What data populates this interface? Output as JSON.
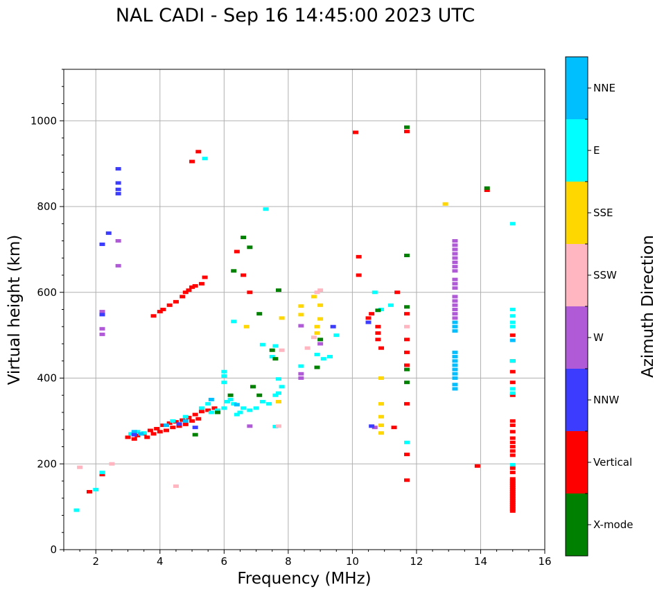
{
  "chart_data": {
    "type": "scatter",
    "title": "NAL CADI - Sep 16 14:45:00 2023 UTC",
    "xlabel": "Frequency (MHz)",
    "ylabel": "Virtual height (km)",
    "xlim": [
      1,
      16
    ],
    "ylim": [
      0,
      1120
    ],
    "xticks": [
      2,
      4,
      6,
      8,
      10,
      12,
      14,
      16
    ],
    "xtick_labels": [
      "2",
      "4",
      "6",
      "8",
      "10",
      "12",
      "14",
      "16"
    ],
    "yticks": [
      0,
      200,
      400,
      600,
      800,
      1000
    ],
    "ytick_labels": [
      "0",
      "200",
      "400",
      "600",
      "800",
      "1000"
    ],
    "grid": true,
    "colorbar": {
      "label": "Azimuth Direction",
      "categories": [
        {
          "name": "X-mode",
          "color": "#008000"
        },
        {
          "name": "Vertical",
          "color": "#ff0000"
        },
        {
          "name": "NNW",
          "color": "#3c3cff"
        },
        {
          "name": "W",
          "color": "#b05ad8"
        },
        {
          "name": "SSW",
          "color": "#ffb6c1"
        },
        {
          "name": "SSE",
          "color": "#ffd700"
        },
        {
          "name": "E",
          "color": "#00ffff"
        },
        {
          "name": "NNE",
          "color": "#00bfff"
        }
      ]
    },
    "series": [
      {
        "name": "Vertical",
        "points": [
          [
            3.0,
            262
          ],
          [
            3.2,
            258
          ],
          [
            3.3,
            266
          ],
          [
            3.5,
            270
          ],
          [
            3.6,
            262
          ],
          [
            3.7,
            278
          ],
          [
            3.8,
            270
          ],
          [
            3.9,
            282
          ],
          [
            4.0,
            275
          ],
          [
            4.1,
            290
          ],
          [
            4.2,
            278
          ],
          [
            4.3,
            295
          ],
          [
            4.4,
            285
          ],
          [
            4.5,
            298
          ],
          [
            4.6,
            288
          ],
          [
            4.7,
            302
          ],
          [
            4.8,
            292
          ],
          [
            4.9,
            308
          ],
          [
            5.0,
            300
          ],
          [
            5.1,
            315
          ],
          [
            5.2,
            305
          ],
          [
            5.3,
            322
          ],
          [
            5.5,
            325
          ],
          [
            5.7,
            330
          ],
          [
            3.8,
            545
          ],
          [
            4.0,
            555
          ],
          [
            4.1,
            560
          ],
          [
            4.3,
            570
          ],
          [
            4.5,
            578
          ],
          [
            4.7,
            590
          ],
          [
            4.8,
            600
          ],
          [
            4.9,
            605
          ],
          [
            5.0,
            612
          ],
          [
            5.1,
            615
          ],
          [
            5.3,
            620
          ],
          [
            5.4,
            635
          ],
          [
            6.4,
            695
          ],
          [
            6.6,
            640
          ],
          [
            6.8,
            600
          ],
          [
            2.2,
            175
          ],
          [
            1.8,
            135
          ],
          [
            10.1,
            973
          ],
          [
            10.2,
            640
          ],
          [
            10.2,
            683
          ],
          [
            10.5,
            540
          ],
          [
            10.6,
            550
          ],
          [
            10.8,
            520
          ],
          [
            10.8,
            505
          ],
          [
            10.8,
            490
          ],
          [
            10.9,
            470
          ],
          [
            11.4,
            600
          ],
          [
            11.3,
            285
          ],
          [
            11.7,
            975
          ],
          [
            11.7,
            550
          ],
          [
            11.7,
            490
          ],
          [
            11.7,
            460
          ],
          [
            11.7,
            430
          ],
          [
            11.7,
            340
          ],
          [
            11.7,
            222
          ],
          [
            11.7,
            162
          ],
          [
            13.9,
            195
          ],
          [
            14.2,
            838
          ],
          [
            15.0,
            500
          ],
          [
            15.0,
            440
          ],
          [
            15.0,
            415
          ],
          [
            15.0,
            390
          ],
          [
            15.0,
            360
          ],
          [
            15.0,
            300
          ],
          [
            15.0,
            290
          ],
          [
            15.0,
            275
          ],
          [
            15.0,
            260
          ],
          [
            15.0,
            250
          ],
          [
            15.0,
            240
          ],
          [
            15.0,
            230
          ],
          [
            15.0,
            220
          ],
          [
            15.0,
            190
          ],
          [
            15.0,
            180
          ],
          [
            15.0,
            165
          ],
          [
            15.0,
            160
          ],
          [
            15.0,
            155
          ],
          [
            15.0,
            150
          ],
          [
            15.0,
            145
          ],
          [
            15.0,
            140
          ],
          [
            15.0,
            135
          ],
          [
            15.0,
            130
          ],
          [
            15.0,
            125
          ],
          [
            15.0,
            120
          ],
          [
            15.0,
            115
          ],
          [
            15.0,
            110
          ],
          [
            15.0,
            105
          ],
          [
            15.0,
            100
          ],
          [
            15.0,
            95
          ],
          [
            15.0,
            90
          ],
          [
            5.0,
            905
          ],
          [
            5.2,
            928
          ]
        ]
      },
      {
        "name": "E",
        "points": [
          [
            1.4,
            92
          ],
          [
            2.0,
            140
          ],
          [
            2.2,
            180
          ],
          [
            3.1,
            270
          ],
          [
            3.3,
            275
          ],
          [
            3.5,
            272
          ],
          [
            4.4,
            300
          ],
          [
            4.8,
            310
          ],
          [
            5.3,
            330
          ],
          [
            5.5,
            340
          ],
          [
            5.6,
            320
          ],
          [
            5.8,
            325
          ],
          [
            6.0,
            330
          ],
          [
            6.1,
            345
          ],
          [
            6.2,
            350
          ],
          [
            6.3,
            340
          ],
          [
            6.4,
            315
          ],
          [
            6.5,
            320
          ],
          [
            6.6,
            330
          ],
          [
            6.8,
            325
          ],
          [
            7.0,
            330
          ],
          [
            7.2,
            345
          ],
          [
            7.4,
            340
          ],
          [
            7.6,
            360
          ],
          [
            7.7,
            365
          ],
          [
            7.8,
            380
          ],
          [
            6.0,
            390
          ],
          [
            6.0,
            405
          ],
          [
            6.0,
            415
          ],
          [
            6.3,
            532
          ],
          [
            7.2,
            478
          ],
          [
            7.5,
            450
          ],
          [
            7.6,
            475
          ],
          [
            7.7,
            398
          ],
          [
            8.4,
            428
          ],
          [
            8.9,
            455
          ],
          [
            9.1,
            445
          ],
          [
            9.3,
            450
          ],
          [
            9.5,
            500
          ],
          [
            10.7,
            600
          ],
          [
            10.9,
            560
          ],
          [
            11.2,
            570
          ],
          [
            11.7,
            250
          ],
          [
            15.0,
            560
          ],
          [
            15.0,
            545
          ],
          [
            15.0,
            530
          ],
          [
            15.0,
            520
          ],
          [
            15.0,
            440
          ],
          [
            15.0,
            375
          ],
          [
            15.0,
            365
          ],
          [
            15.0,
            198
          ],
          [
            15.0,
            760
          ],
          [
            7.3,
            794
          ],
          [
            5.4,
            912
          ],
          [
            7.6,
            287
          ]
        ]
      },
      {
        "name": "NNE",
        "points": [
          [
            3.2,
            275
          ],
          [
            3.4,
            270
          ],
          [
            4.2,
            290
          ],
          [
            4.8,
            300
          ],
          [
            5.6,
            350
          ],
          [
            6.4,
            338
          ],
          [
            13.2,
            530
          ],
          [
            13.2,
            520
          ],
          [
            13.2,
            510
          ],
          [
            13.2,
            460
          ],
          [
            13.2,
            450
          ],
          [
            13.2,
            440
          ],
          [
            13.2,
            430
          ],
          [
            13.2,
            420
          ],
          [
            13.2,
            410
          ],
          [
            13.2,
            400
          ],
          [
            13.2,
            385
          ],
          [
            13.2,
            375
          ],
          [
            15.0,
            488
          ]
        ]
      },
      {
        "name": "W",
        "points": [
          [
            13.2,
            720
          ],
          [
            13.2,
            710
          ],
          [
            13.2,
            700
          ],
          [
            13.2,
            690
          ],
          [
            13.2,
            680
          ],
          [
            13.2,
            670
          ],
          [
            13.2,
            660
          ],
          [
            13.2,
            650
          ],
          [
            13.2,
            630
          ],
          [
            13.2,
            620
          ],
          [
            13.2,
            610
          ],
          [
            13.2,
            590
          ],
          [
            13.2,
            580
          ],
          [
            13.2,
            570
          ],
          [
            13.2,
            560
          ],
          [
            13.2,
            550
          ],
          [
            13.2,
            540
          ],
          [
            8.4,
            522
          ],
          [
            8.4,
            410
          ],
          [
            8.4,
            400
          ],
          [
            2.2,
            555
          ],
          [
            2.2,
            515
          ],
          [
            2.2,
            502
          ],
          [
            9.0,
            480
          ],
          [
            10.7,
            285
          ],
          [
            6.8,
            288
          ],
          [
            2.7,
            662
          ],
          [
            2.7,
            720
          ]
        ]
      },
      {
        "name": "NNW",
        "points": [
          [
            2.2,
            548
          ],
          [
            2.7,
            888
          ],
          [
            2.7,
            855
          ],
          [
            2.7,
            840
          ],
          [
            2.7,
            830
          ],
          [
            2.4,
            738
          ],
          [
            2.2,
            712
          ],
          [
            10.6,
            288
          ],
          [
            10.5,
            530
          ],
          [
            9.4,
            520
          ],
          [
            5.1,
            285
          ],
          [
            4.6,
            293
          ],
          [
            3.2,
            268
          ]
        ]
      },
      {
        "name": "X-mode",
        "points": [
          [
            6.3,
            650
          ],
          [
            6.6,
            728
          ],
          [
            6.8,
            705
          ],
          [
            7.1,
            550
          ],
          [
            7.7,
            605
          ],
          [
            7.5,
            465
          ],
          [
            7.6,
            445
          ],
          [
            8.9,
            425
          ],
          [
            9.0,
            490
          ],
          [
            10.8,
            558
          ],
          [
            11.7,
            985
          ],
          [
            11.7,
            686
          ],
          [
            11.7,
            566
          ],
          [
            11.7,
            420
          ],
          [
            11.7,
            390
          ],
          [
            14.2,
            843
          ],
          [
            5.1,
            268
          ],
          [
            5.8,
            320
          ],
          [
            6.2,
            360
          ],
          [
            6.9,
            380
          ],
          [
            7.1,
            360
          ]
        ]
      },
      {
        "name": "SSE",
        "points": [
          [
            8.4,
            568
          ],
          [
            8.4,
            548
          ],
          [
            8.8,
            590
          ],
          [
            9.0,
            570
          ],
          [
            9.0,
            538
          ],
          [
            8.9,
            520
          ],
          [
            8.9,
            505
          ],
          [
            10.9,
            400
          ],
          [
            10.9,
            340
          ],
          [
            10.9,
            310
          ],
          [
            10.9,
            290
          ],
          [
            10.9,
            272
          ],
          [
            12.9,
            806
          ],
          [
            7.7,
            345
          ],
          [
            7.8,
            540
          ],
          [
            6.7,
            520
          ]
        ]
      },
      {
        "name": "SSW",
        "points": [
          [
            9.0,
            605
          ],
          [
            8.9,
            600
          ],
          [
            8.8,
            495
          ],
          [
            8.6,
            470
          ],
          [
            2.5,
            200
          ],
          [
            4.5,
            148
          ],
          [
            1.5,
            192
          ],
          [
            7.7,
            288
          ],
          [
            7.8,
            465
          ],
          [
            11.7,
            520
          ]
        ]
      }
    ]
  }
}
